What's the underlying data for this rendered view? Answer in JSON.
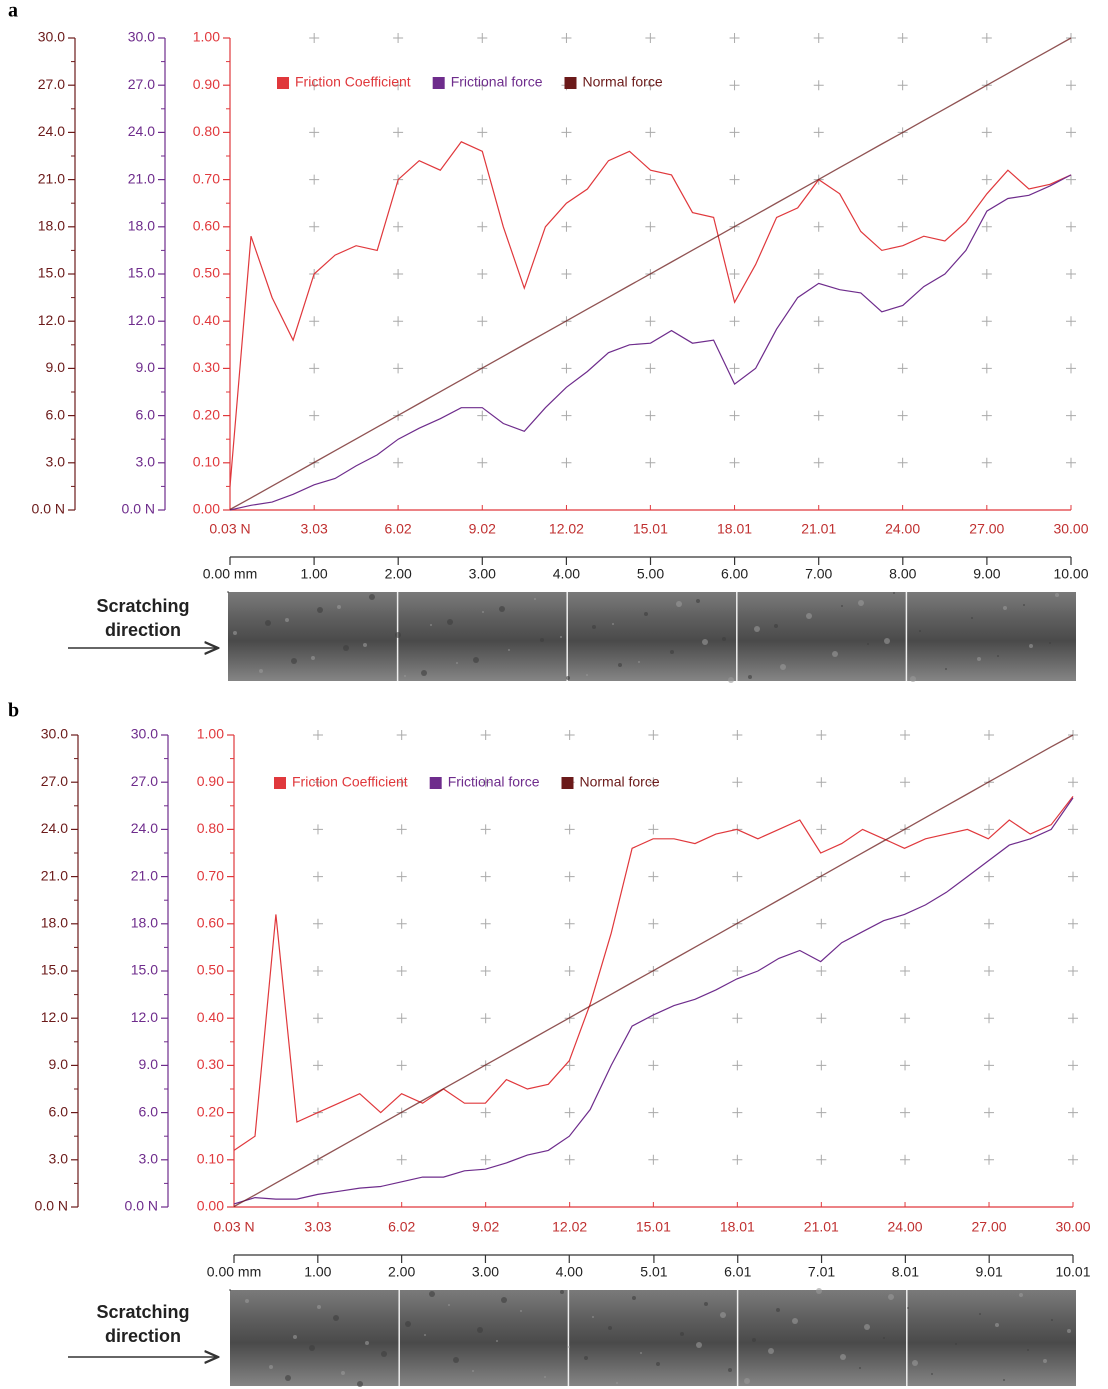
{
  "chart_data": [
    {
      "type": "line",
      "panel_label": "a",
      "annotation": "Scratching direction",
      "x": [
        0,
        0.25,
        0.5,
        0.75,
        1,
        1.25,
        1.5,
        1.75,
        2,
        2.25,
        2.5,
        2.75,
        3,
        3.25,
        3.5,
        3.75,
        4,
        4.25,
        4.5,
        4.75,
        5,
        5.25,
        5.5,
        5.75,
        6,
        6.25,
        6.5,
        6.75,
        7,
        7.25,
        7.5,
        7.75,
        8,
        8.25,
        8.5,
        8.75,
        9,
        9.25,
        9.5,
        9.75,
        10
      ],
      "xlim": [
        0,
        10
      ],
      "xticks": [
        {
          "value": 0,
          "label": "0.00 mm"
        },
        {
          "value": 1,
          "label": "1.00"
        },
        {
          "value": 2,
          "label": "2.00"
        },
        {
          "value": 3,
          "label": "3.00"
        },
        {
          "value": 4,
          "label": "4.00"
        },
        {
          "value": 5,
          "label": "5.00"
        },
        {
          "value": 6,
          "label": "6.00"
        },
        {
          "value": 7,
          "label": "7.00"
        },
        {
          "value": 8,
          "label": "8.00"
        },
        {
          "value": 9,
          "label": "9.00"
        },
        {
          "value": 10,
          "label": "10.00"
        }
      ],
      "x2lim": [
        0.03,
        30
      ],
      "x2ticks": [
        {
          "value": 0.03,
          "label": "0.03 N"
        },
        3.03,
        6.02,
        9.02,
        12.02,
        15.01,
        18.01,
        21.01,
        {
          "value": 24,
          "label": "24.00"
        },
        {
          "value": 27,
          "label": "27.00"
        },
        {
          "value": 30,
          "label": "30.00"
        }
      ],
      "ylim": [
        0,
        1
      ],
      "yticks": [
        {
          "value": 0,
          "label": "0.00"
        },
        {
          "value": 0.1,
          "label": "0.10"
        },
        {
          "value": 0.2,
          "label": "0.20"
        },
        {
          "value": 0.3,
          "label": "0.30"
        },
        {
          "value": 0.4,
          "label": "0.40"
        },
        {
          "value": 0.5,
          "label": "0.50"
        },
        {
          "value": 0.6,
          "label": "0.60"
        },
        {
          "value": 0.7,
          "label": "0.70"
        },
        {
          "value": 0.8,
          "label": "0.80"
        },
        {
          "value": 0.9,
          "label": "0.90"
        },
        {
          "value": 1,
          "label": "1.00"
        }
      ],
      "y2lim": [
        0,
        30
      ],
      "y2ticks": [
        {
          "value": 0,
          "label": "0.0 N"
        },
        {
          "value": 3,
          "label": "3.0"
        },
        {
          "value": 6,
          "label": "6.0"
        },
        {
          "value": 9,
          "label": "9.0"
        },
        {
          "value": 12,
          "label": "12.0"
        },
        {
          "value": 15,
          "label": "15.0"
        },
        {
          "value": 18,
          "label": "18.0"
        },
        {
          "value": 21,
          "label": "21.0"
        },
        {
          "value": 24,
          "label": "24.0"
        },
        {
          "value": 27,
          "label": "27.0"
        },
        {
          "value": 30,
          "label": "30.0"
        }
      ],
      "y3lim": [
        0,
        30
      ],
      "y3ticks": [
        {
          "value": 0,
          "label": "0.0 N"
        },
        {
          "value": 3,
          "label": "3.0"
        },
        {
          "value": 6,
          "label": "6.0"
        },
        {
          "value": 9,
          "label": "9.0"
        },
        {
          "value": 12,
          "label": "12.0"
        },
        {
          "value": 15,
          "label": "15.0"
        },
        {
          "value": 18,
          "label": "18.0"
        },
        {
          "value": 21,
          "label": "21.0"
        },
        {
          "value": 24,
          "label": "24.0"
        },
        {
          "value": 27,
          "label": "27.0"
        },
        {
          "value": 30,
          "label": "30.0"
        }
      ],
      "series": [
        {
          "name": "Friction Coefficient",
          "color": "#e0383c",
          "values": [
            0.05,
            0.58,
            0.45,
            0.36,
            0.5,
            0.54,
            0.56,
            0.55,
            0.7,
            0.74,
            0.72,
            0.78,
            0.76,
            0.6,
            0.47,
            0.6,
            0.65,
            0.68,
            0.74,
            0.76,
            0.72,
            0.71,
            0.63,
            0.62,
            0.44,
            0.52,
            0.62,
            0.64,
            0.7,
            0.67,
            0.59,
            0.55,
            0.56,
            0.58,
            0.57,
            0.61,
            0.67,
            0.72,
            0.68,
            0.69,
            0.71
          ]
        },
        {
          "name": "Frictional force",
          "color": "#6e2c8c",
          "axis": "y2",
          "values": [
            0,
            0.3,
            0.5,
            1,
            1.6,
            2,
            2.8,
            3.5,
            4.5,
            5.2,
            5.8,
            6.5,
            6.5,
            5.5,
            5,
            6.5,
            7.8,
            8.8,
            10,
            10.5,
            10.6,
            11.4,
            10.6,
            10.8,
            8,
            9,
            11.5,
            13.5,
            14.4,
            14,
            13.8,
            12.6,
            13,
            14.2,
            15,
            16.5,
            19,
            19.8,
            20,
            20.6,
            21.3
          ]
        },
        {
          "name": "Normal force",
          "color": "#6b1a1a",
          "axis": "y3",
          "values": [
            0.03,
            0.77,
            1.52,
            2.27,
            3.02,
            3.77,
            4.52,
            5.27,
            6.02,
            6.77,
            7.52,
            8.27,
            9.02,
            9.77,
            10.52,
            11.27,
            12.02,
            12.77,
            13.52,
            14.27,
            15.01,
            15.76,
            16.51,
            17.26,
            18.01,
            18.76,
            19.51,
            20.26,
            21.01,
            21.76,
            22.51,
            23.26,
            24,
            24.75,
            25.5,
            26.25,
            27,
            27.75,
            28.5,
            29.25,
            30
          ]
        }
      ]
    },
    {
      "type": "line",
      "panel_label": "b",
      "annotation": "Scratching direction",
      "x": [
        0,
        0.25,
        0.5,
        0.75,
        1,
        1.25,
        1.5,
        1.75,
        2,
        2.25,
        2.5,
        2.75,
        3,
        3.25,
        3.5,
        3.75,
        4,
        4.25,
        4.5,
        4.75,
        5,
        5.25,
        5.5,
        5.75,
        6,
        6.25,
        6.5,
        6.75,
        7,
        7.25,
        7.5,
        7.75,
        8,
        8.25,
        8.5,
        8.75,
        9,
        9.25,
        9.5,
        9.75,
        10.01
      ],
      "xlim": [
        0,
        10.01
      ],
      "xticks": [
        {
          "value": 0,
          "label": "0.00 mm"
        },
        {
          "value": 1,
          "label": "1.00"
        },
        {
          "value": 2,
          "label": "2.00"
        },
        {
          "value": 3,
          "label": "3.00"
        },
        {
          "value": 4,
          "label": "4.00"
        },
        5.01,
        6.01,
        7.01,
        8.01,
        9.01,
        10.01
      ],
      "x2lim": [
        0.03,
        30
      ],
      "x2ticks": [
        {
          "value": 0.03,
          "label": "0.03 N"
        },
        3.03,
        6.02,
        9.02,
        12.02,
        15.01,
        18.01,
        21.01,
        {
          "value": 24,
          "label": "24.00"
        },
        {
          "value": 27,
          "label": "27.00"
        },
        {
          "value": 30,
          "label": "30.00"
        }
      ],
      "ylim": [
        0,
        1
      ],
      "yticks": [
        {
          "value": 0,
          "label": "0.00"
        },
        {
          "value": 0.1,
          "label": "0.10"
        },
        {
          "value": 0.2,
          "label": "0.20"
        },
        {
          "value": 0.3,
          "label": "0.30"
        },
        {
          "value": 0.4,
          "label": "0.40"
        },
        {
          "value": 0.5,
          "label": "0.50"
        },
        {
          "value": 0.6,
          "label": "0.60"
        },
        {
          "value": 0.7,
          "label": "0.70"
        },
        {
          "value": 0.8,
          "label": "0.80"
        },
        {
          "value": 0.9,
          "label": "0.90"
        },
        {
          "value": 1,
          "label": "1.00"
        }
      ],
      "y2lim": [
        0,
        30
      ],
      "y2ticks": [
        {
          "value": 0,
          "label": "0.0 N"
        },
        {
          "value": 3,
          "label": "3.0"
        },
        {
          "value": 6,
          "label": "6.0"
        },
        {
          "value": 9,
          "label": "9.0"
        },
        {
          "value": 12,
          "label": "12.0"
        },
        {
          "value": 15,
          "label": "15.0"
        },
        {
          "value": 18,
          "label": "18.0"
        },
        {
          "value": 21,
          "label": "21.0"
        },
        {
          "value": 24,
          "label": "24.0"
        },
        {
          "value": 27,
          "label": "27.0"
        },
        {
          "value": 30,
          "label": "30.0"
        }
      ],
      "y3lim": [
        0,
        30
      ],
      "y3ticks": [
        {
          "value": 0,
          "label": "0.0 N"
        },
        {
          "value": 3,
          "label": "3.0"
        },
        {
          "value": 6,
          "label": "6.0"
        },
        {
          "value": 9,
          "label": "9.0"
        },
        {
          "value": 12,
          "label": "12.0"
        },
        {
          "value": 15,
          "label": "15.0"
        },
        {
          "value": 18,
          "label": "18.0"
        },
        {
          "value": 21,
          "label": "21.0"
        },
        {
          "value": 24,
          "label": "24.0"
        },
        {
          "value": 27,
          "label": "27.0"
        },
        {
          "value": 30,
          "label": "30.0"
        }
      ],
      "series": [
        {
          "name": "Friction Coefficient",
          "color": "#e0383c",
          "values": [
            0.12,
            0.15,
            0.62,
            0.18,
            0.2,
            0.22,
            0.24,
            0.2,
            0.24,
            0.22,
            0.25,
            0.22,
            0.22,
            0.27,
            0.25,
            0.26,
            0.31,
            0.43,
            0.58,
            0.76,
            0.78,
            0.78,
            0.77,
            0.79,
            0.8,
            0.78,
            0.8,
            0.82,
            0.75,
            0.77,
            0.8,
            0.78,
            0.76,
            0.78,
            0.79,
            0.8,
            0.78,
            0.82,
            0.79,
            0.81,
            0.87
          ]
        },
        {
          "name": "Frictional force",
          "color": "#6e2c8c",
          "axis": "y2",
          "values": [
            0.2,
            0.6,
            0.5,
            0.5,
            0.8,
            1,
            1.2,
            1.3,
            1.6,
            1.9,
            1.9,
            2.3,
            2.4,
            2.8,
            3.3,
            3.6,
            4.5,
            6.2,
            9,
            11.5,
            12.2,
            12.8,
            13.2,
            13.8,
            14.5,
            15,
            15.8,
            16.3,
            15.6,
            16.8,
            17.5,
            18.2,
            18.6,
            19.2,
            20,
            21,
            22,
            23,
            23.4,
            24,
            26
          ]
        },
        {
          "name": "Normal force",
          "color": "#6b1a1a",
          "axis": "y3",
          "values": [
            0.03,
            0.77,
            1.52,
            2.27,
            3.02,
            3.77,
            4.52,
            5.27,
            6.02,
            6.77,
            7.52,
            8.27,
            9.02,
            9.77,
            10.52,
            11.27,
            12.02,
            12.77,
            13.52,
            14.27,
            15.01,
            15.76,
            16.51,
            17.26,
            18.01,
            18.76,
            19.51,
            20.26,
            21.01,
            21.76,
            22.51,
            23.26,
            24,
            24.75,
            25.5,
            26.25,
            27,
            27.75,
            28.5,
            29.25,
            30
          ]
        }
      ]
    }
  ]
}
